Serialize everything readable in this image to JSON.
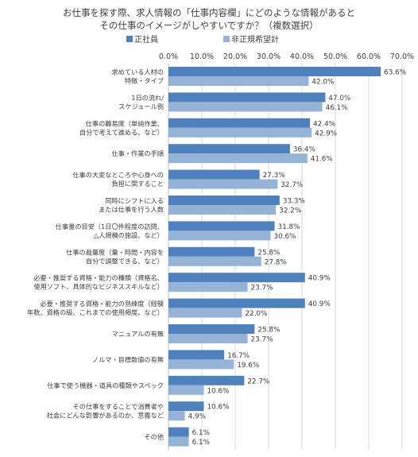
{
  "chart_data": {
    "type": "bar",
    "orientation": "horizontal",
    "title": [
      "お仕事を探す際、求人情報の「仕事内容欄」にどのような情報があると",
      "その仕事のイメージがしやすいですか？（複数選択）"
    ],
    "xlim": [
      0,
      70
    ],
    "x_ticks": [
      "0.0%",
      "10.0%",
      "20.0%",
      "30.0%",
      "40.0%",
      "50.0%",
      "60.0%",
      "70.0%"
    ],
    "grid": true,
    "legend_position": "top",
    "colors": {
      "series1": "#4f81bd",
      "series2": "#95b3d7"
    },
    "series": [
      {
        "name": "正社員",
        "values": [
          63.6,
          47.0,
          42.4,
          36.4,
          27.3,
          33.3,
          31.8,
          25.8,
          40.9,
          40.9,
          25.8,
          16.7,
          22.7,
          10.6,
          6.1
        ]
      },
      {
        "name": "非正規希望計",
        "values": [
          42.0,
          46.1,
          42.9,
          41.6,
          32.7,
          32.2,
          30.6,
          27.8,
          23.7,
          22.0,
          23.7,
          19.6,
          10.6,
          4.9,
          6.1
        ]
      }
    ],
    "value_labels": [
      [
        "63.6%",
        "47.0%",
        "42.4%",
        "36.4%",
        "27.3%",
        "33.3%",
        "31.8%",
        "25.8%",
        "40.9%",
        "40.9%",
        "25.8%",
        "16.7%",
        "22.7%",
        "10.6%",
        "6.1%"
      ],
      [
        "42.0%",
        "46.1%",
        "42.9%",
        "41.6%",
        "32.7%",
        "32.2%",
        "30.6%",
        "27.8%",
        "23.7%",
        "22.0%",
        "23.7%",
        "19.6%",
        "10.6%",
        "4.9%",
        "6.1%"
      ]
    ],
    "categories": [
      [
        "求めている人材の",
        "特徴・タイプ"
      ],
      [
        "1日の流れ/",
        "スケジュール例"
      ],
      [
        "仕事の難易度（単純作業、",
        "自分で考えて進める、など）"
      ],
      [
        "仕事・作業の手順"
      ],
      [
        "仕事の大変なところや心身への",
        "負担に関すること"
      ],
      [
        "同時にシフトに入る",
        "または仕事を行う人数"
      ],
      [
        "仕事量の目安（1日〇件程度の訪問、",
        "△人規模の施設、など）"
      ],
      [
        "仕事の裁量度（量・時間・内容を",
        "自分で調整できる、など）"
      ],
      [
        "必要・推奨する資格・能力の種類（資格名、",
        "使用ソフト、具体的なビジネススキルなど）"
      ],
      [
        "必要・推奨する資格・能力の熟練度（経験",
        "年数、資格の級、これまでの使用頻度、など）"
      ],
      [
        "マニュアルの有無"
      ],
      [
        "ノルマ・目標数値の有無"
      ],
      [
        "仕事で使う機器・道具の種類やスペック"
      ],
      [
        "その仕事をすることで消費者や",
        "社会にどんな影響があるのか、意義など"
      ],
      [
        "その他"
      ]
    ]
  }
}
